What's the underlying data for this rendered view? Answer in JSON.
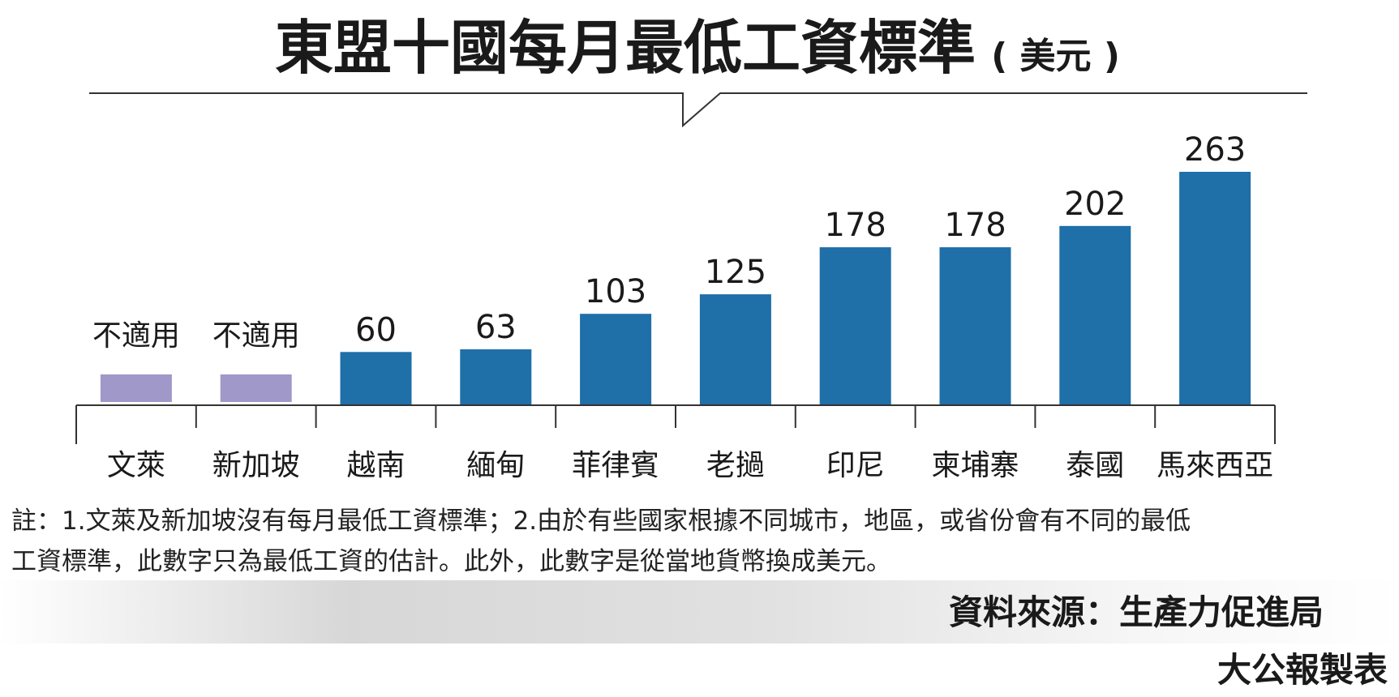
{
  "chart_data": {
    "type": "bar",
    "title": "東盟十國每月最低工資標準",
    "unit": "( 美元 )",
    "categories": [
      "文萊",
      "新加坡",
      "越南",
      "緬甸",
      "菲律賓",
      "老撾",
      "印尼",
      "柬埔寨",
      "泰國",
      "馬來西亞"
    ],
    "values": [
      null,
      null,
      60,
      63,
      103,
      125,
      178,
      178,
      202,
      263
    ],
    "value_labels": [
      "不適用",
      "不適用",
      "60",
      "63",
      "103",
      "125",
      "178",
      "178",
      "202",
      "263"
    ],
    "na_label": "不適用",
    "colors": {
      "bar": "#1f6fa8",
      "na_bar": "#9f98c9"
    },
    "ylim": [
      0,
      263
    ],
    "grid": false,
    "legend": "none"
  },
  "notes": {
    "line1": "註：1.文萊及新加坡沒有每月最低工資標準；2.由於有些國家根據不同城市，地區，或省份會有不同的最低",
    "line2": "工資標準，此數字只為最低工資的估計。此外，此數字是從當地貨幣換成美元。"
  },
  "source": "資料來源：生產力促進局",
  "credit": "大公報製表"
}
